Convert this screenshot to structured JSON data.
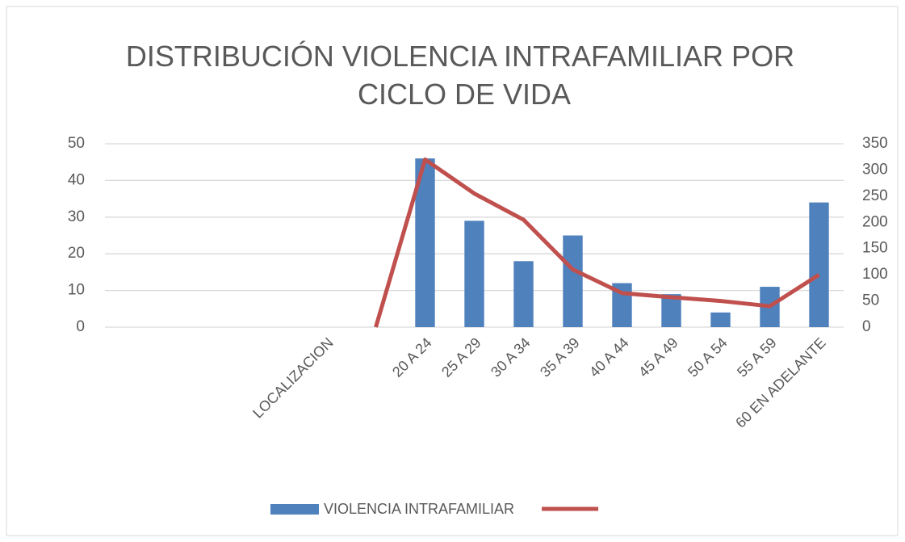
{
  "chart_data": {
    "type": "bar-line",
    "title": "DISTRIBUCIÓN VIOLENCIA INTRAFAMILIAR POR CICLO DE VIDA",
    "categories": [
      null,
      null,
      null,
      null,
      "LOCALIZACION",
      null,
      "20 A 24",
      "25 A 29",
      "30 A 34",
      "35 A 39",
      "40 A 44",
      "45 A 49",
      "50 A 54",
      "55 A 59",
      "60 EN ADELANTE"
    ],
    "series": [
      {
        "name": "VIOLENCIA INTRAFAMILIAR",
        "type": "bar",
        "color": "#4f81bd",
        "values": [
          null,
          null,
          null,
          null,
          null,
          null,
          46,
          29,
          18,
          25,
          12,
          9,
          4,
          11,
          34
        ]
      },
      {
        "type": "line",
        "axis": "y2",
        "color": "#c0504d",
        "values": [
          null,
          null,
          null,
          null,
          null,
          0,
          320,
          255,
          205,
          110,
          65,
          57,
          50,
          40,
          100
        ]
      }
    ],
    "ylim": [
      0,
      50
    ],
    "yticks": [
      0,
      10,
      20,
      30,
      40,
      50
    ],
    "y2lim": [
      0,
      350
    ],
    "y2ticks": [
      0,
      50,
      100,
      150,
      200,
      250,
      300,
      350
    ],
    "grid": true,
    "legend": "bottom"
  }
}
